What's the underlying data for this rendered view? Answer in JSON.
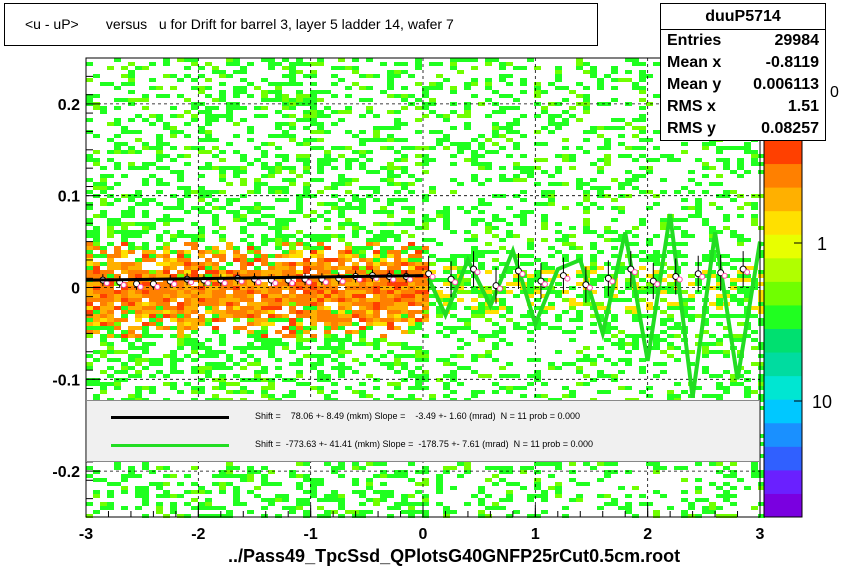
{
  "title": "<u - uP>       versus   u for Drift for barrel 3, layer 5 ladder 14, wafer 7",
  "footer": "../Pass49_TpcSsd_QPlotsG40GNFP25rCut0.5cm.root",
  "stats": {
    "name": "duuP5714",
    "rows": [
      {
        "label": "Entries",
        "value": "29984"
      },
      {
        "label": "Mean x",
        "value": "-0.8119"
      },
      {
        "label": "Mean y",
        "value": "0.006113"
      },
      {
        "label": "RMS x",
        "value": "1.51"
      },
      {
        "label": "RMS y",
        "value": "0.08257"
      }
    ]
  },
  "fits": [
    {
      "color": "#000000",
      "text": "Shift =    78.06 +- 8.49 (mkm) Slope =    -3.49 +- 1.60 (mrad)  N = 11 prob = 0.000"
    },
    {
      "color": "#22dd22",
      "text": "Shift =  -773.63 +- 41.41 (mkm) Slope =  -178.75 +- 7.61 (mrad)  N = 11 prob = 0.000"
    }
  ],
  "palette_labels": [
    "1",
    "10"
  ],
  "palette_partial": "0",
  "colors": {
    "palette": [
      "#7a00e0",
      "#6a20ff",
      "#3060ff",
      "#1a90ff",
      "#00c8ff",
      "#00e6d2",
      "#00dca0",
      "#00e070",
      "#20ff20",
      "#70ff00",
      "#b0ff00",
      "#e8ff00",
      "#ffe000",
      "#ffb000",
      "#ff8000",
      "#ff4000"
    ],
    "fit_black": "#000000",
    "fit_green": "#22dd22",
    "profile_black": "#000000",
    "profile_pink": "#ff44aa"
  },
  "chart_data": {
    "type": "heatmap",
    "title": "<u - uP>       versus   u for Drift for barrel 3, layer 5 ladder 14, wafer 7",
    "xlim": [
      -3,
      3
    ],
    "ylim": [
      -0.25,
      0.25
    ],
    "x_ticks": [
      -3,
      -2,
      -1,
      0,
      1,
      2,
      3
    ],
    "x_tick_labels": [
      "-3",
      "-2",
      "-1",
      "0",
      "1",
      "2",
      "3"
    ],
    "y_ticks": [
      -0.2,
      -0.1,
      0,
      0.1,
      0.2
    ],
    "y_tick_labels": [
      "-0.2",
      "-0.1",
      "0",
      "0.1",
      "0.2"
    ],
    "grid": true,
    "color_scale": "log",
    "series": [
      {
        "type": "profile",
        "x": [
          -2.85,
          -2.7,
          -2.55,
          -2.4,
          -2.25,
          -2.1,
          -1.95,
          -1.8,
          -1.65,
          -1.5,
          -1.35,
          -1.2,
          -1.05,
          -0.9,
          -0.75,
          -0.6,
          -0.45,
          -0.3,
          -0.15,
          0.05,
          0.25,
          0.45,
          0.65,
          0.85,
          1.05,
          1.25,
          1.45,
          1.65,
          1.85,
          2.05,
          2.25,
          2.45,
          2.65,
          2.85
        ],
        "y": [
          0.008,
          0.006,
          0.004,
          0.004,
          0.007,
          0.009,
          0.008,
          0.008,
          0.01,
          0.009,
          0.008,
          0.008,
          0.009,
          0.009,
          0.01,
          0.012,
          0.013,
          0.012,
          0.012,
          0.015,
          0.009,
          0.02,
          0.002,
          0.018,
          0.007,
          0.013,
          0.003,
          0.01,
          0.02,
          0.007,
          0.012,
          0.015,
          0.016,
          0.02
        ]
      },
      {
        "type": "fit_line",
        "name": "black",
        "x": [
          -3,
          0
        ],
        "y": [
          0.008,
          0.013
        ]
      },
      {
        "type": "fit_curve",
        "name": "green",
        "x": [
          0.05,
          0.2,
          0.4,
          0.6,
          0.8,
          1.0,
          1.2,
          1.4,
          1.6,
          1.8,
          2.0,
          2.2,
          2.4,
          2.6,
          2.8,
          3.0
        ],
        "y": [
          0.01,
          -0.03,
          0.03,
          -0.02,
          0.04,
          -0.04,
          0.02,
          0.03,
          -0.05,
          0.06,
          -0.08,
          0.08,
          -0.12,
          0.06,
          -0.1,
          0.05
        ]
      }
    ]
  }
}
